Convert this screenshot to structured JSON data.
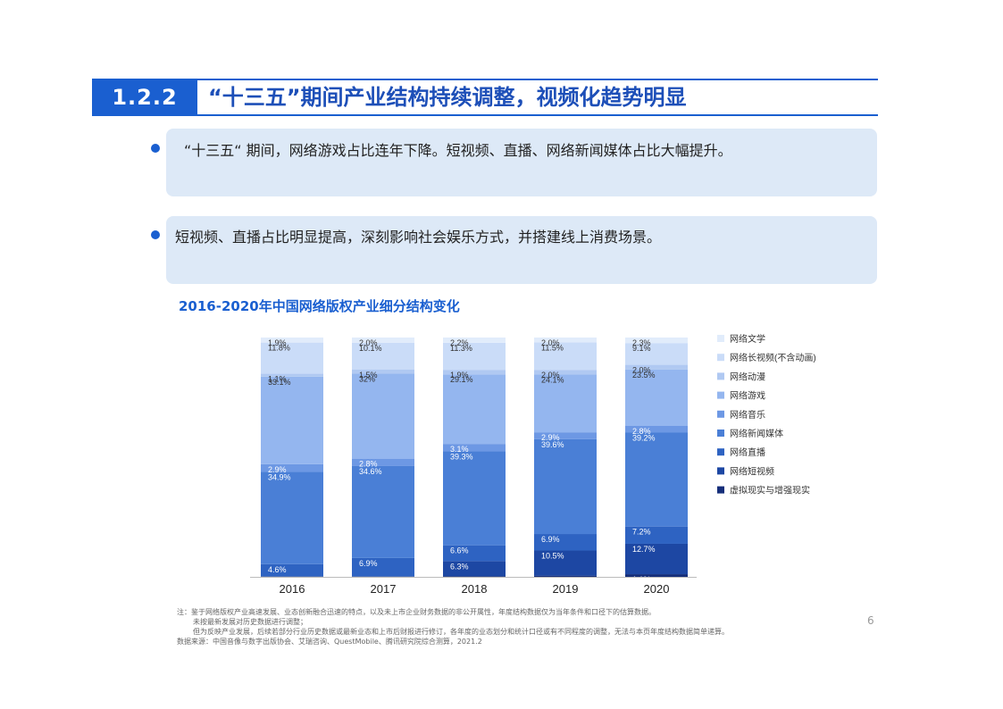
{
  "header": {
    "number": "1.2.2",
    "title": "“十三五”期间产业结构持续调整，视频化趋势明显"
  },
  "bullets": [
    "“十三五“ 期间，网络游戏占比连年下降。短视频、直播、网络新闻媒体占比大幅提升。",
    "短视频、直播占比明显提高，深刻影响社会娱乐方式，并搭建线上消费场景。"
  ],
  "chart_data": {
    "type": "bar",
    "stacked": true,
    "title": "2016-2020年中国网络版权产业细分结构变化",
    "categories": [
      "2016",
      "2017",
      "2018",
      "2019",
      "2020"
    ],
    "legend_position": "right",
    "series": [
      {
        "name": "虚拟现实与增强现实",
        "color": "#152e7a",
        "values": [
          0.1,
          0.1,
          0.3,
          0.5,
          1.1
        ],
        "labels": [
          "0.1%",
          "0.1%",
          "0.3%",
          "0.5%",
          "1.1%"
        ]
      },
      {
        "name": "网络短视频",
        "color": "#1d47a3",
        "values": [
          0.1,
          0.1,
          6.3,
          10.5,
          12.7
        ],
        "labels": [
          "0.1%",
          "0.1%",
          "6.3%",
          "10.5%",
          "12.7%"
        ]
      },
      {
        "name": "网络直播",
        "color": "#2e63c2",
        "values": [
          4.6,
          6.9,
          6.6,
          6.9,
          7.2
        ],
        "labels": [
          "4.6%",
          "6.9%",
          "6.6%",
          "6.9%",
          "7.2%"
        ]
      },
      {
        "name": "网络新闻媒体",
        "color": "#4a7fd6",
        "values": [
          34.9,
          34.6,
          39.3,
          39.6,
          39.2
        ],
        "labels": [
          "34.9%",
          "34.6%",
          "39.3%",
          "39.6%",
          "39.2%"
        ]
      },
      {
        "name": "网络音乐",
        "color": "#6d98e4",
        "values": [
          2.9,
          2.8,
          3.1,
          2.9,
          2.8
        ],
        "labels": [
          "2.9%",
          "2.8%",
          "3.1%",
          "2.9%",
          "2.8%"
        ]
      },
      {
        "name": "网络游戏",
        "color": "#94b6ef",
        "values": [
          33.1,
          32,
          29.1,
          24.1,
          23.5
        ],
        "labels": [
          "33.1%",
          "32%",
          "29.1%",
          "24.1%",
          "23.5%"
        ]
      },
      {
        "name": "网络动漫",
        "color": "#b0c9f2",
        "values": [
          1.1,
          1.5,
          1.9,
          2.0,
          2.0
        ],
        "labels": [
          "1.1%",
          "1.5%",
          "1.9%",
          "2.0%",
          "2.0%"
        ]
      },
      {
        "name": "网络长视频(不含动画)",
        "color": "#cadcf8",
        "values": [
          11.8,
          10.1,
          11.3,
          11.5,
          9.1
        ],
        "labels": [
          "11.8%",
          "10.1%",
          "11.3%",
          "11.5%",
          "9.1%"
        ]
      },
      {
        "name": "网络文学",
        "color": "#e1ecfb",
        "values": [
          1.9,
          2.0,
          2.2,
          2.0,
          2.3
        ],
        "labels": [
          "1.9%",
          "2.0%",
          "2.2%",
          "2.0%",
          "2.3%"
        ]
      }
    ]
  },
  "notes": {
    "line1": "注：鉴于网络版权产业高速发展、业态创新融合迅速的特点，以及未上市企业财务数据的非公开属性，年度结构数据仅为当年条件和口径下的估算数据。",
    "line2": "未按最新发展对历史数据进行调整；",
    "line3": "但为反映产业发展，后续若部分行业历史数据或最新业态和上市后财报进行修订，各年度的业态划分和统计口径或有不同程度的调整，无法与本页年度结构数据简单递算。",
    "source": "数据来源：中国音像与数字出版协会、艾瑞咨询、QuestMobile、腾讯研究院综合测算，2021.2"
  },
  "page_number": "6"
}
